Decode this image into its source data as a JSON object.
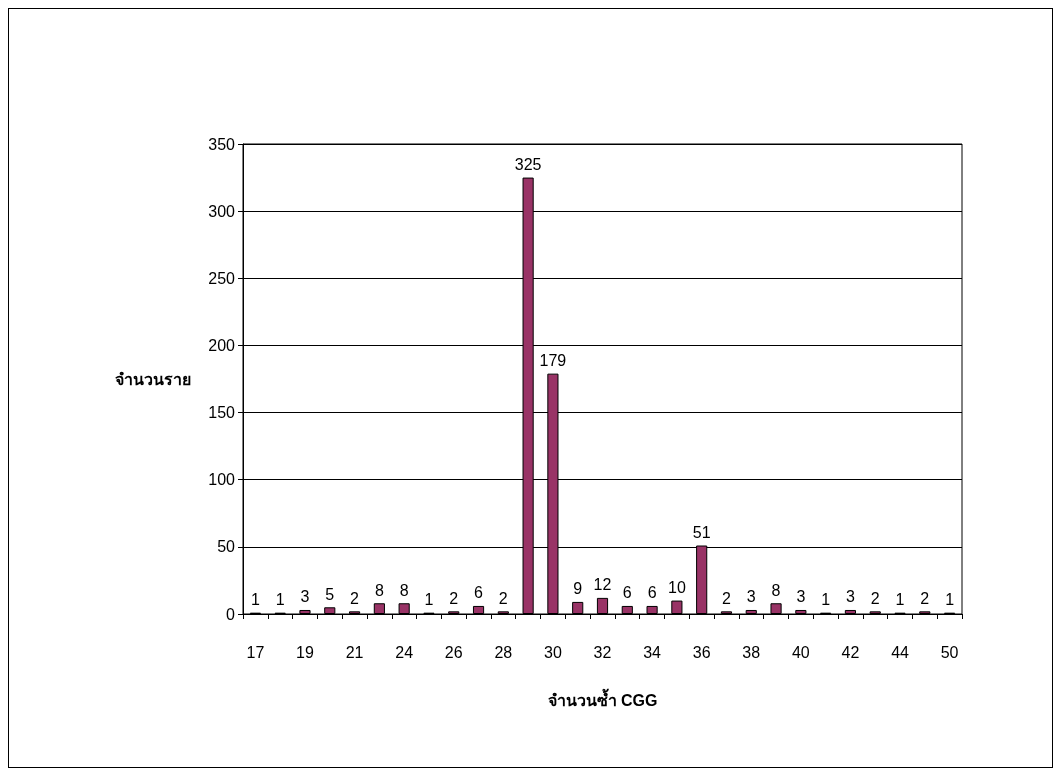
{
  "chart_data": {
    "type": "bar",
    "xlabel": "จำนวนซ้ำ CGG",
    "ylabel": "จำนวนราย",
    "categories": [
      "17",
      null,
      "19",
      null,
      "21",
      null,
      "24",
      null,
      "26",
      null,
      "28",
      null,
      "30",
      null,
      "32",
      null,
      "34",
      null,
      "36",
      null,
      "38",
      null,
      "40",
      null,
      "42",
      null,
      "44",
      null,
      "50"
    ],
    "values": [
      1,
      1,
      3,
      5,
      2,
      8,
      8,
      1,
      2,
      6,
      2,
      325,
      179,
      9,
      12,
      6,
      6,
      10,
      51,
      2,
      3,
      8,
      3,
      1,
      3,
      2,
      1,
      2,
      1
    ],
    "color": "#993366",
    "ylim": [
      0,
      350
    ],
    "yticks": [
      0,
      50,
      100,
      150,
      200,
      250,
      300,
      350
    ],
    "grid": "y",
    "data_labels": true
  }
}
